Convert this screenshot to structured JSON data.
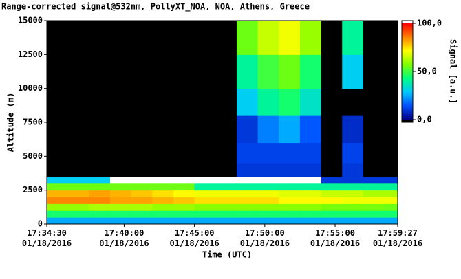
{
  "chart_data": {
    "type": "heatmap",
    "title": "Range-corrected signal@532nm, PollyXT_NOA, NOA, Athens, Greece",
    "xlabel": "Time (UTC)",
    "ylabel": "Altitude (m)",
    "colorbar_label": "Signal [a.u.]",
    "xbins": [
      "2016-01-18T17:34:30",
      "2016-01-18T17:36:00",
      "2016-01-18T17:37:30",
      "2016-01-18T17:39:00",
      "2016-01-18T17:40:30",
      "2016-01-18T17:42:00",
      "2016-01-18T17:43:30",
      "2016-01-18T17:45:00",
      "2016-01-18T17:46:30",
      "2016-01-18T17:48:00",
      "2016-01-18T17:49:30",
      "2016-01-18T17:51:00",
      "2016-01-18T17:52:30",
      "2016-01-18T17:54:00",
      "2016-01-18T17:55:30",
      "2016-01-18T17:57:00",
      "2016-01-18T17:58:30",
      "2016-01-18T17:59:27"
    ],
    "ybins": [
      0,
      500,
      1000,
      1500,
      2000,
      2500,
      3000,
      3500,
      4500,
      6000,
      8000,
      10000,
      12500,
      15000
    ],
    "values": [
      [
        25,
        25,
        25,
        25,
        25,
        25,
        25,
        25,
        25,
        25,
        25,
        25,
        25,
        25,
        25,
        25,
        25
      ],
      [
        45,
        45,
        45,
        45,
        45,
        45,
        45,
        45,
        45,
        45,
        45,
        45,
        45,
        45,
        45,
        45,
        45
      ],
      [
        60,
        60,
        62,
        62,
        62,
        60,
        60,
        58,
        58,
        58,
        58,
        58,
        58,
        56,
        56,
        56,
        55
      ],
      [
        85,
        85,
        85,
        82,
        82,
        80,
        78,
        75,
        75,
        75,
        75,
        72,
        72,
        72,
        70,
        70,
        70
      ],
      [
        80,
        80,
        82,
        80,
        78,
        75,
        72,
        70,
        70,
        70,
        70,
        68,
        68,
        65,
        65,
        62,
        62
      ],
      [
        55,
        55,
        55,
        55,
        55,
        55,
        55,
        40,
        40,
        40,
        40,
        40,
        40,
        40,
        40,
        40,
        40
      ],
      [
        30,
        30,
        30,
        105,
        105,
        105,
        105,
        105,
        105,
        105,
        105,
        105,
        105,
        10,
        10,
        10,
        10
      ],
      [
        -2,
        -2,
        -2,
        -2,
        -2,
        -2,
        -2,
        -2,
        -2,
        10,
        10,
        10,
        10,
        -2,
        10,
        -2,
        -2
      ],
      [
        -2,
        -2,
        -2,
        -2,
        -2,
        -2,
        -2,
        -2,
        -2,
        12,
        12,
        12,
        12,
        -2,
        12,
        -2,
        -2
      ],
      [
        -2,
        -2,
        -2,
        -2,
        -2,
        -2,
        -2,
        -2,
        -2,
        10,
        20,
        25,
        15,
        -2,
        8,
        -2,
        -2
      ],
      [
        -2,
        -2,
        -2,
        -2,
        -2,
        -2,
        -2,
        -2,
        -2,
        30,
        40,
        45,
        35,
        -2,
        -2,
        -2,
        -2
      ],
      [
        -2,
        -2,
        -2,
        -2,
        -2,
        -2,
        -2,
        -2,
        -2,
        40,
        50,
        55,
        45,
        -2,
        30,
        -2,
        -2
      ],
      [
        -2,
        -2,
        -2,
        -2,
        -2,
        -2,
        -2,
        -2,
        -2,
        55,
        65,
        70,
        60,
        -2,
        40,
        -2,
        -2
      ]
    ],
    "colormap": [
      "#000080",
      "#0050ff",
      "#00c8ff",
      "#00ff80",
      "#80ff00",
      "#ffff00",
      "#ff8000",
      "#ff0000"
    ],
    "under_color": "#000000",
    "over_color": "#ffffff",
    "xlim": [
      "2016-01-18T17:34:30",
      "2016-01-18T17:59:27"
    ],
    "xticks": [
      {
        "value": "2016-01-18T17:34:30",
        "label": "17:34:30\n01/18/2016"
      },
      {
        "value": "2016-01-18T17:40:00",
        "label": "17:40:00\n01/18/2016"
      },
      {
        "value": "2016-01-18T17:45:00",
        "label": "17:45:00\n01/18/2016"
      },
      {
        "value": "2016-01-18T17:50:00",
        "label": "17:50:00\n01/18/2016"
      },
      {
        "value": "2016-01-18T17:55:00",
        "label": "17:55:00\n01/18/2016"
      },
      {
        "value": "2016-01-18T17:59:27",
        "label": "17:59:27\n01/18/2016"
      }
    ],
    "ylim": [
      0,
      15000
    ],
    "yticks": [
      0,
      2500,
      5000,
      7500,
      10000,
      12500,
      15000
    ],
    "zlim": [
      0,
      100
    ],
    "zticks": [
      {
        "value": 0,
        "label": "0,0"
      },
      {
        "value": 50,
        "label": "50,0"
      },
      {
        "value": 100,
        "label": "100,0"
      }
    ]
  }
}
